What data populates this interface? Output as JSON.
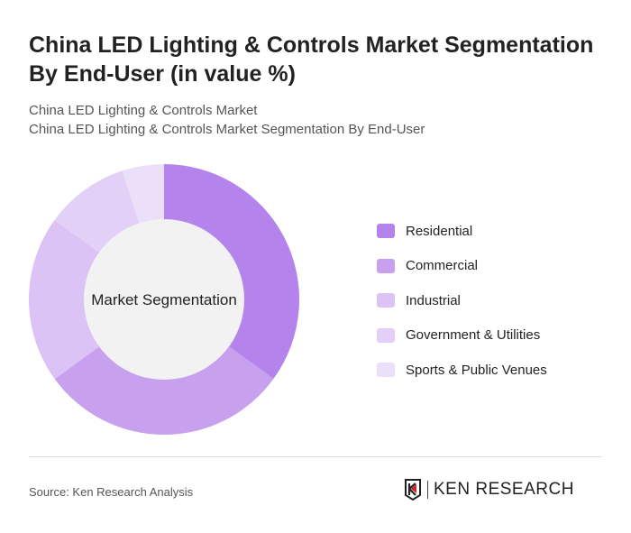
{
  "title": "China LED Lighting & Controls Market Segmentation By End-User (in value %)",
  "subtitle1": "China LED Lighting & Controls Market",
  "subtitle2": "China LED Lighting & Controls Market Segmentation By End-User",
  "source": "Source: Ken Research Analysis",
  "logo_text": "KEN RESEARCH",
  "chart_data": {
    "type": "pie",
    "variant": "donut",
    "center_label": "Market Segmentation",
    "categories": [
      "Residential",
      "Commercial",
      "Industrial",
      "Government & Utilities",
      "Sports & Public Venues"
    ],
    "values": [
      35,
      30,
      20,
      10,
      5
    ],
    "unit": "%",
    "colors": [
      "#b583ec",
      "#c7a0ee",
      "#dcc3f5",
      "#e3d0f7",
      "#ebdff9"
    ],
    "legend_position": "right"
  }
}
